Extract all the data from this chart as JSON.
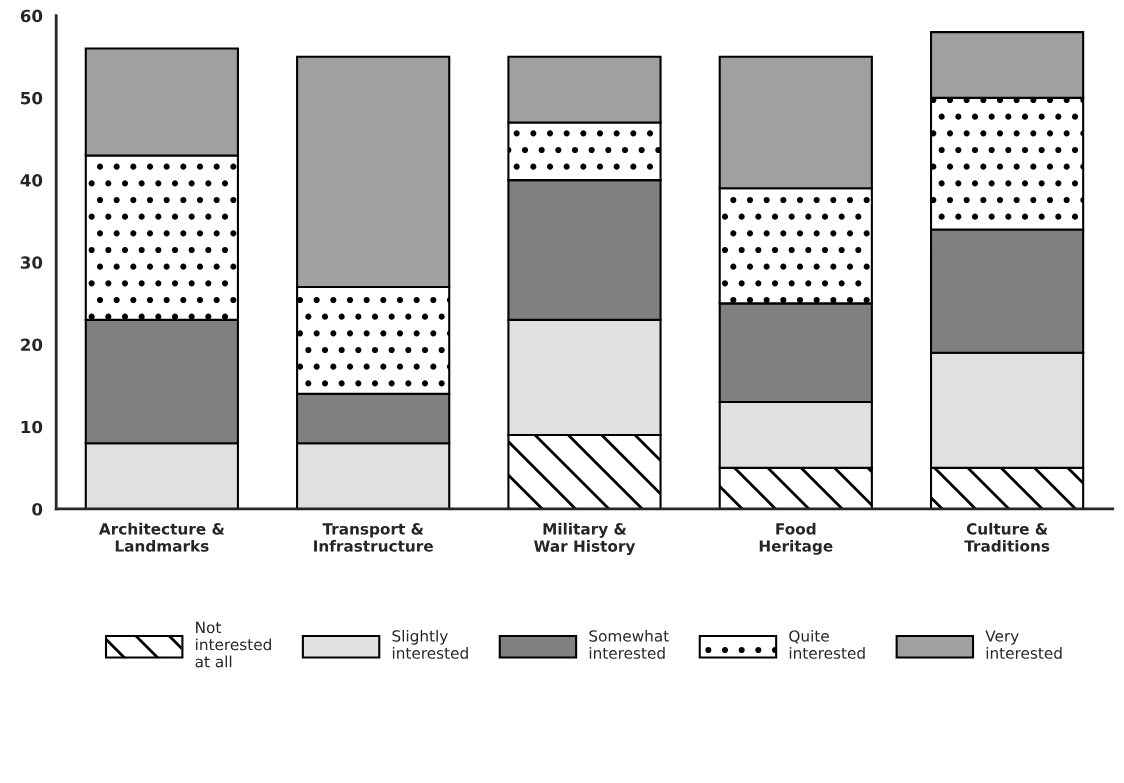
{
  "chart_data": {
    "type": "bar",
    "stacked": true,
    "categories": [
      "Architecture &\nLandmarks",
      "Transport &\nInfrastructure",
      "Military &\nWar History",
      "Food\nHeritage",
      "Culture &\nTraditions"
    ],
    "series": [
      {
        "name": "Not\ninterested\nat all",
        "color": "#ffffff",
        "values": [
          0,
          0,
          9,
          5,
          5
        ]
      },
      {
        "name": "Slightly\ninterested",
        "color": "#e0e0e0",
        "values": [
          8,
          8,
          14,
          8,
          14
        ]
      },
      {
        "name": "Somewhat\ninterested",
        "color": "#808080",
        "values": [
          15,
          6,
          17,
          12,
          15
        ]
      },
      {
        "name": "Quite\ninterested",
        "color": "#ffffff",
        "values": [
          20,
          13,
          7,
          14,
          16
        ]
      },
      {
        "name": "Very\ninterested",
        "color": "#a0a0a0",
        "values": [
          13,
          28,
          8,
          16,
          8
        ]
      }
    ],
    "ylim": [
      0,
      60
    ],
    "yticks": [
      0,
      10,
      20,
      30,
      40,
      50,
      60
    ],
    "grid": false,
    "legend": "bottom"
  }
}
